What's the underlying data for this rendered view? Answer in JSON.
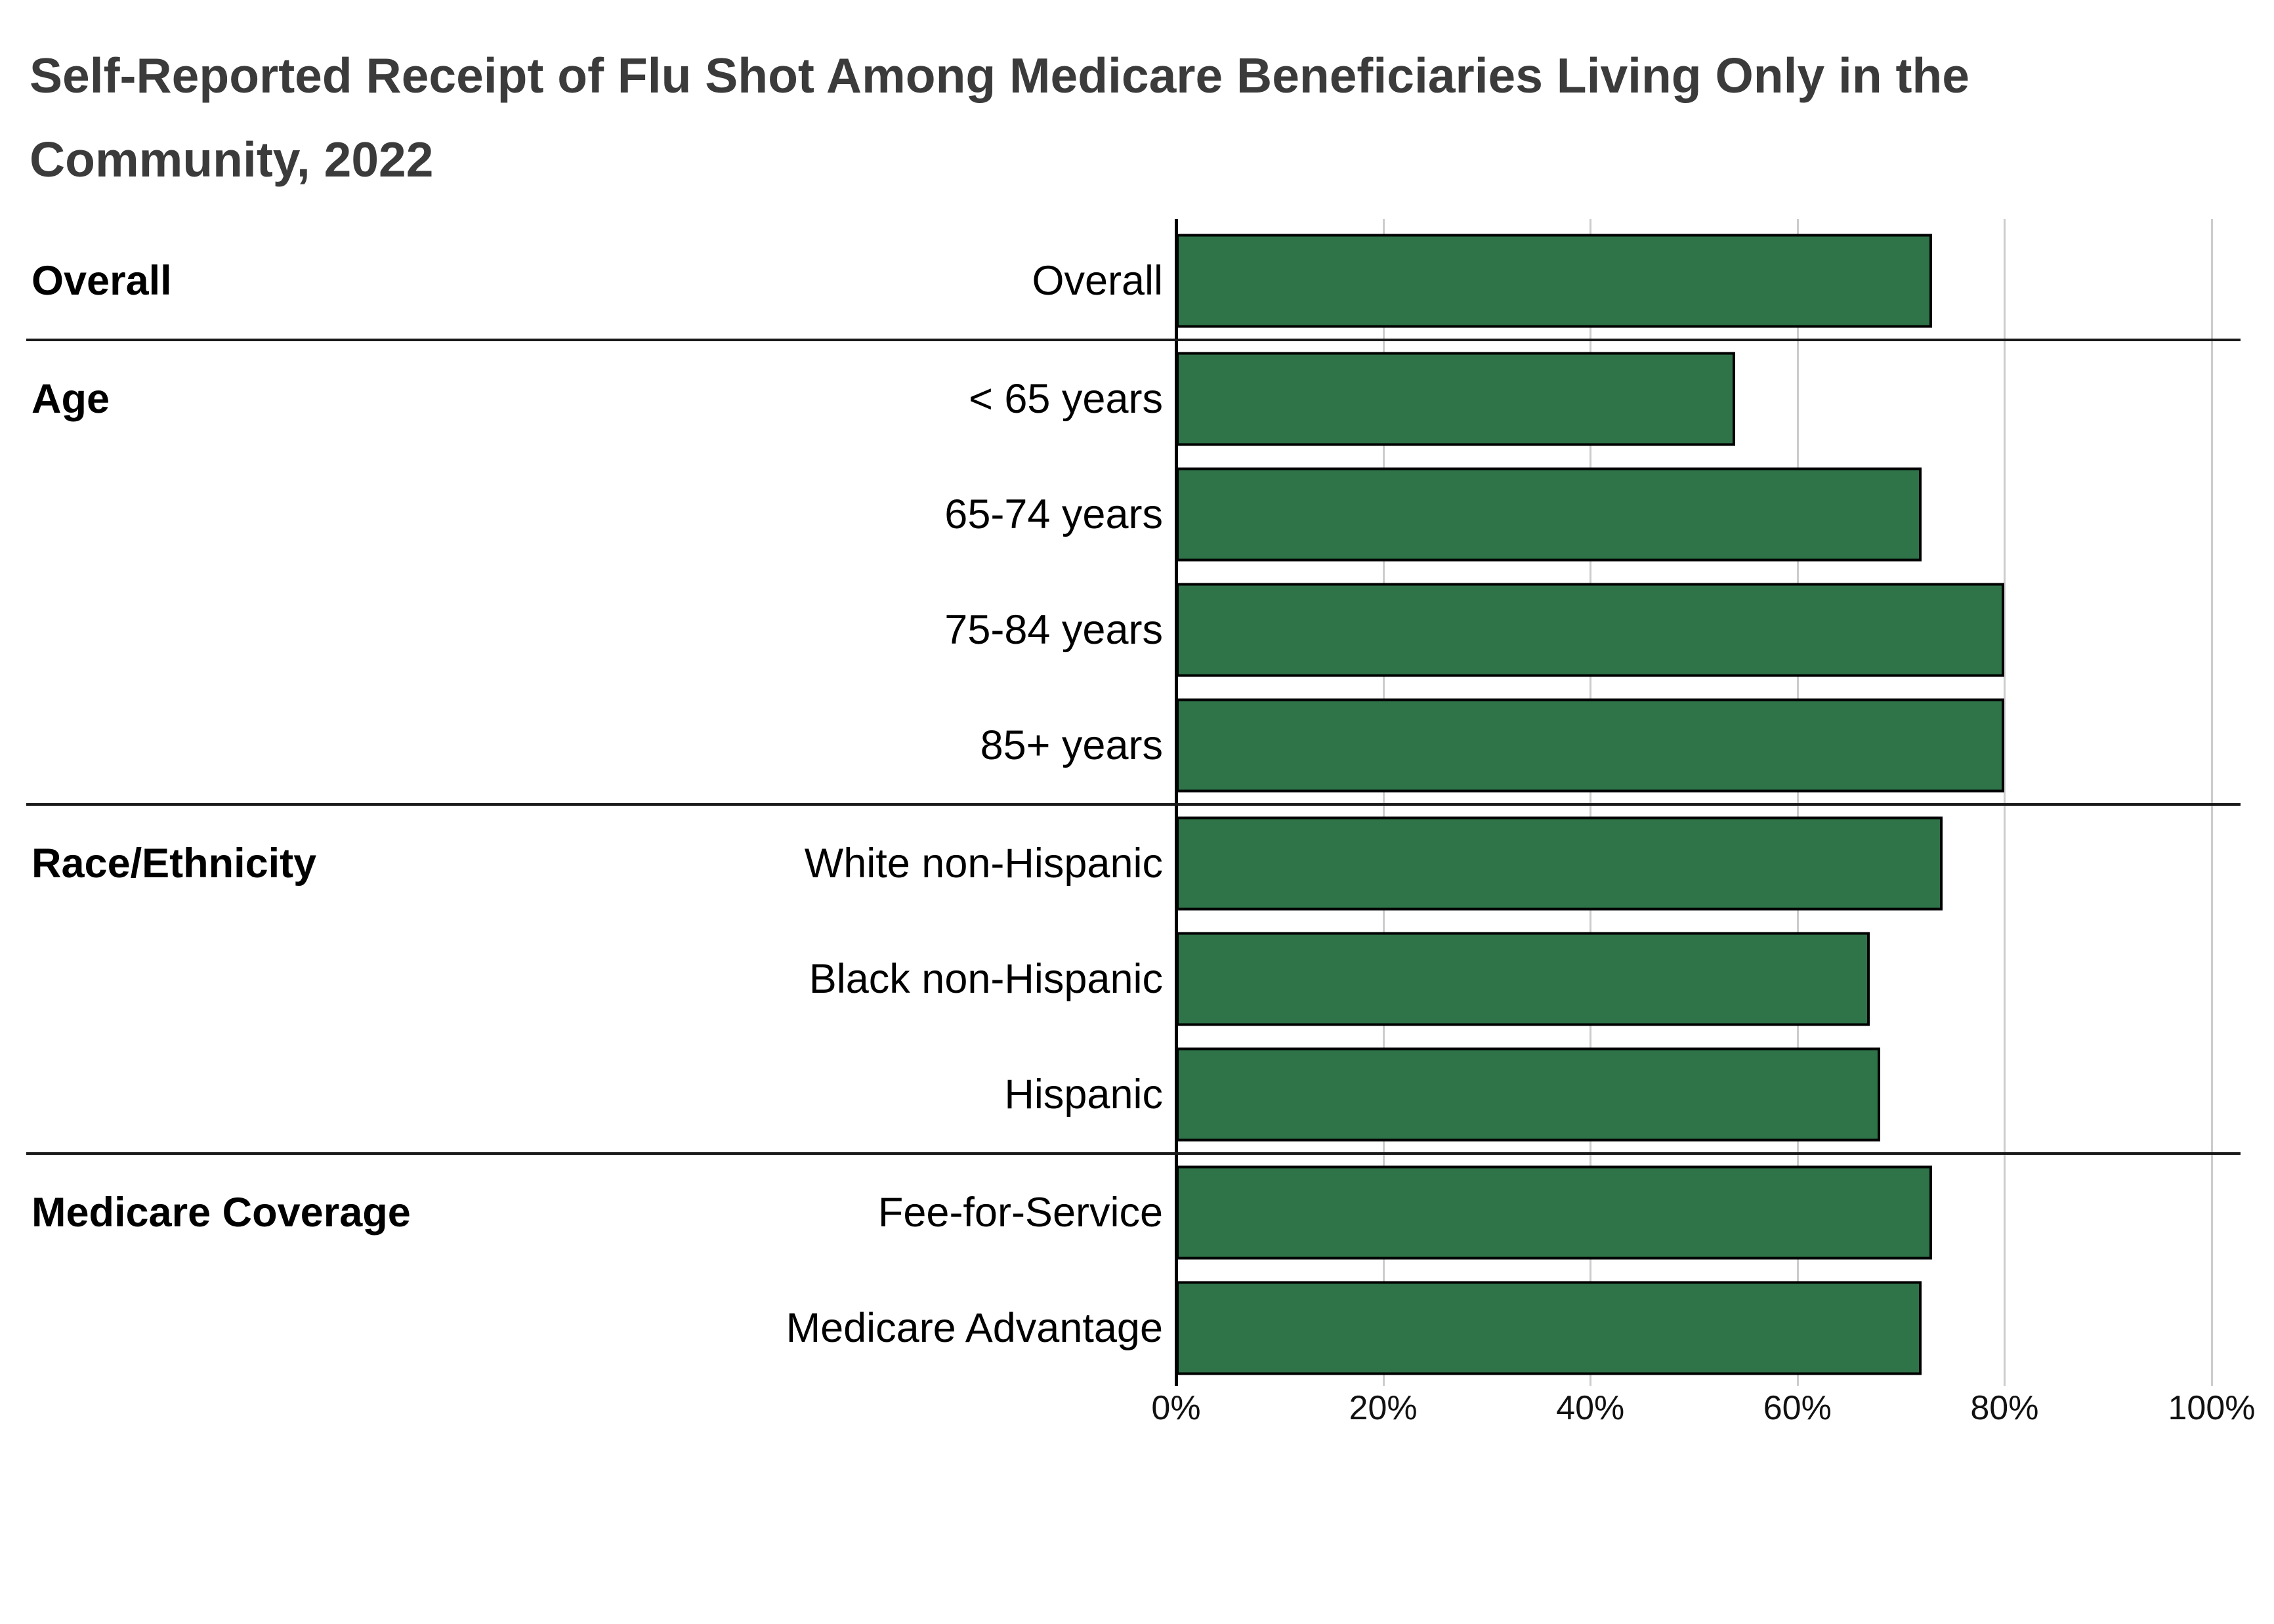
{
  "page": {
    "background": "#ffffff"
  },
  "chart_data": {
    "type": "bar",
    "orientation": "horizontal",
    "title": "Self-Reported Receipt of Flu Shot Among Medicare Beneficiaries Living Only in the Community, 2022",
    "xlabel": "",
    "ylabel": "",
    "xlim": [
      0,
      100
    ],
    "unit": "percent",
    "grid": true,
    "x_ticks": [
      {
        "label": "0%",
        "value": 0
      },
      {
        "label": "20%",
        "value": 20
      },
      {
        "label": "40%",
        "value": 40
      },
      {
        "label": "60%",
        "value": 60
      },
      {
        "label": "80%",
        "value": 80
      },
      {
        "label": "100%",
        "value": 100
      }
    ],
    "groups": [
      {
        "label": "Overall",
        "rows": [
          {
            "label": "Overall",
            "value": 73
          }
        ]
      },
      {
        "label": "Age",
        "rows": [
          {
            "label": "< 65 years",
            "value": 54
          },
          {
            "label": "65-74 years",
            "value": 72
          },
          {
            "label": "75-84 years",
            "value": 80
          },
          {
            "label": "85+ years",
            "value": 80
          }
        ]
      },
      {
        "label": "Race/Ethnicity",
        "rows": [
          {
            "label": "White non-Hispanic",
            "value": 74
          },
          {
            "label": "Black non-Hispanic",
            "value": 67
          },
          {
            "label": "Hispanic",
            "value": 68
          }
        ]
      },
      {
        "label": "Medicare Coverage",
        "rows": [
          {
            "label": "Fee-for-Service",
            "value": 73
          },
          {
            "label": "Medicare Advantage",
            "value": 72
          }
        ]
      }
    ],
    "colors": {
      "bar_fill": "#2F7348",
      "bar_border": "#000000",
      "gridline": "#cccccc",
      "axis_line": "#000000",
      "separator": "#1a1a1a",
      "title_text": "#3b3b3b",
      "label_text": "#000000",
      "tick_text": "#111111"
    }
  }
}
